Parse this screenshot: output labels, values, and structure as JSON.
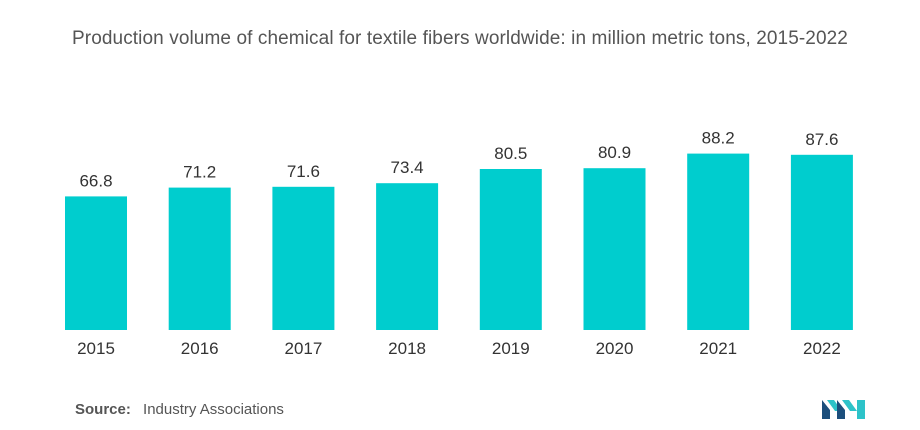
{
  "title": "Production volume of chemical for textile fibers worldwide: in million metric tons, 2015-2022",
  "source": {
    "label": "Source:",
    "text": "Industry Associations"
  },
  "logo_icon": "mordor-intelligence-logo",
  "colors": {
    "bar": "#00CDCE",
    "logo_dark": "#1C4F7C",
    "logo_light": "#2DC3C9"
  },
  "chart_data": {
    "type": "bar",
    "title": "Production volume of chemical for textile fibers worldwide: in million metric tons, 2015-2022",
    "categories": [
      "2015",
      "2016",
      "2017",
      "2018",
      "2019",
      "2020",
      "2021",
      "2022"
    ],
    "values": [
      66.8,
      71.2,
      71.6,
      73.4,
      80.5,
      80.9,
      88.2,
      87.6
    ],
    "value_labels": [
      "66.8",
      "71.2",
      "71.6",
      "73.4",
      "80.5",
      "80.9",
      "88.2",
      "87.6"
    ],
    "xlabel": "",
    "ylabel": "",
    "grid": false,
    "legend": "none"
  }
}
